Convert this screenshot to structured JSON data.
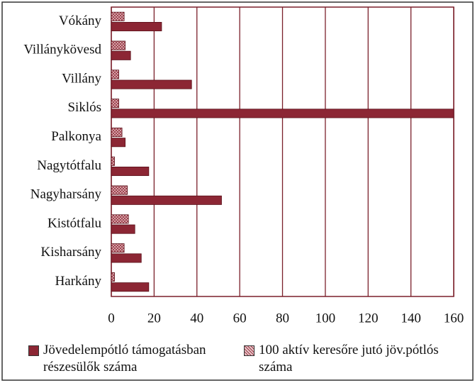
{
  "chart_data": {
    "type": "hbar",
    "categories": [
      "Vókány",
      "Villánykövesd",
      "Villány",
      "Siklós",
      "Palkonya",
      "Nagytótfalu",
      "Nagyharsány",
      "Kistótfalu",
      "Kisharsány",
      "Harkány"
    ],
    "series": [
      {
        "name": "Jövedelempótló támogatásban részesülők száma",
        "color": "#8c2634",
        "values": [
          23.5,
          9,
          37.5,
          160,
          6.5,
          17.5,
          51.5,
          11,
          14,
          17.5
        ]
      },
      {
        "name": "100 aktív keresőre jutó jöv.pótlós száma",
        "color": "#b8606b",
        "pattern": "crosshatch",
        "values": [
          6,
          6.5,
          3.5,
          3.5,
          5,
          1.5,
          7.5,
          8,
          6,
          1.5
        ]
      }
    ],
    "xlim": [
      0,
      160
    ],
    "xticks": [
      0,
      20,
      40,
      60,
      80,
      100,
      120,
      140,
      160
    ],
    "grid": true
  }
}
